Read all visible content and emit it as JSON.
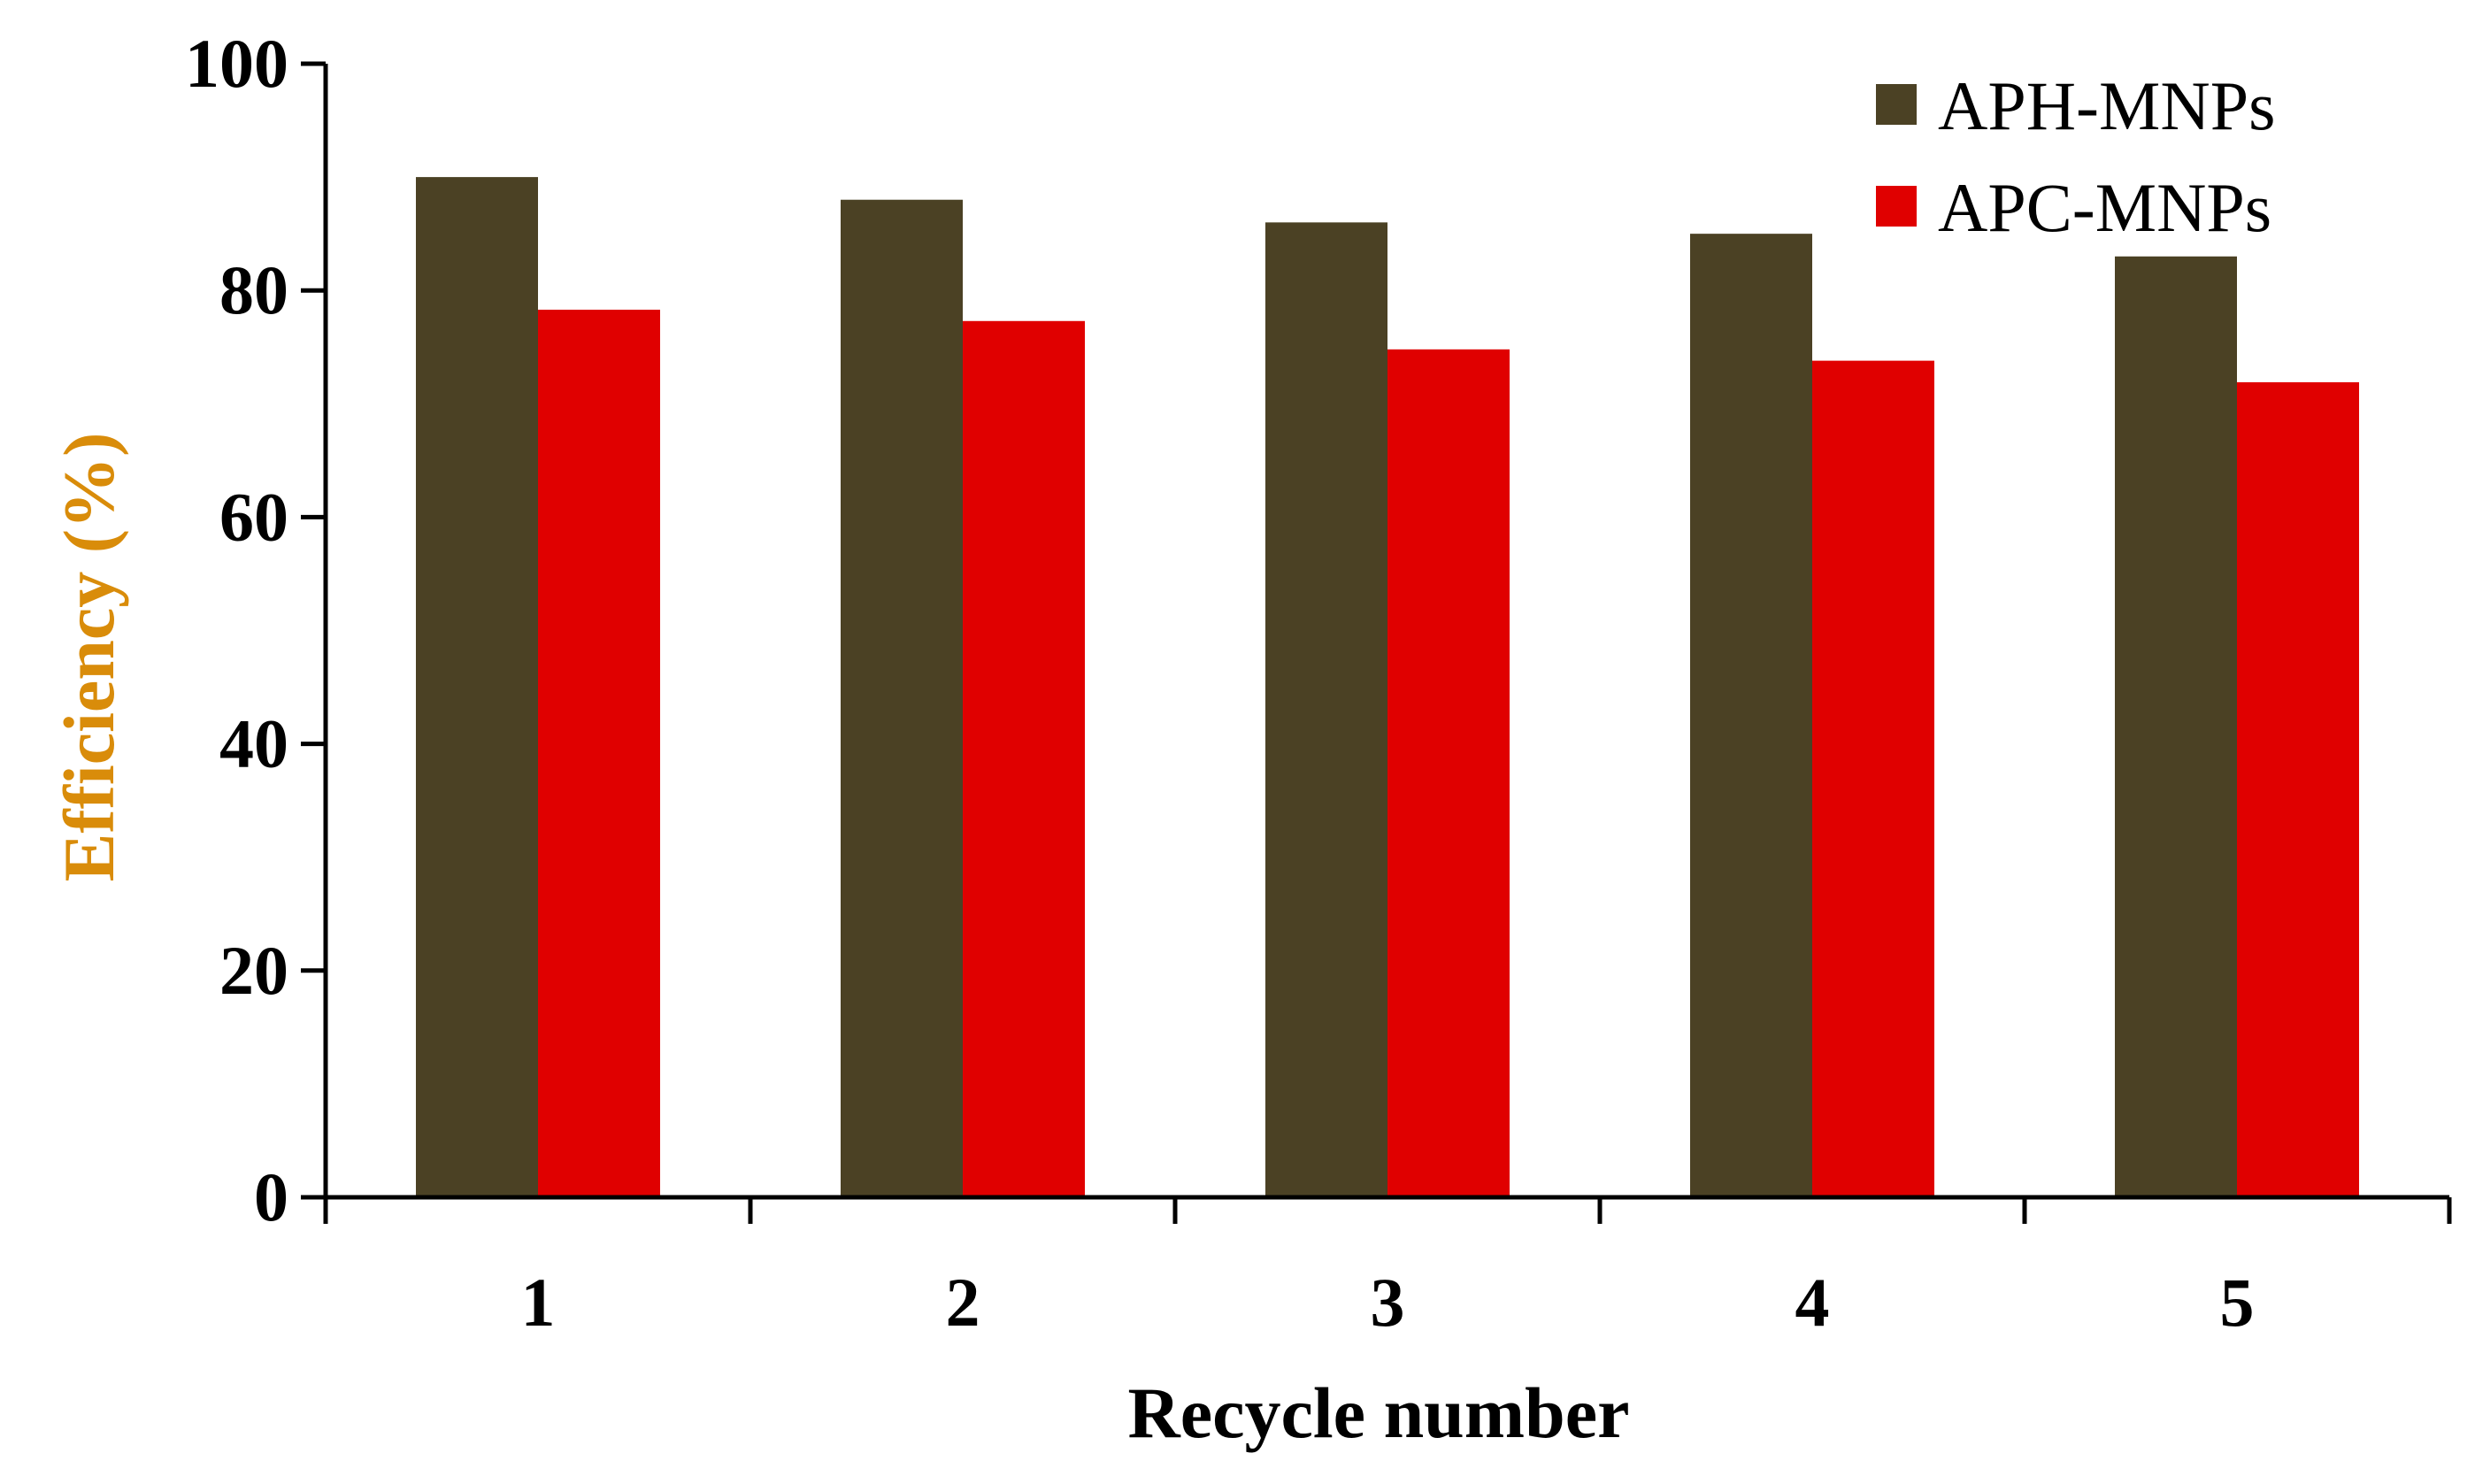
{
  "chart_data": {
    "type": "bar",
    "categories": [
      "1",
      "2",
      "3",
      "4",
      "5"
    ],
    "series": [
      {
        "name": "APH-MNPs",
        "values": [
          90,
          88,
          86,
          85,
          83
        ],
        "color": "#4b4124"
      },
      {
        "name": "APC-MNPs",
        "values": [
          78.3,
          77.3,
          74.8,
          73.8,
          71.9
        ],
        "color": "#e00000"
      }
    ],
    "xlabel": "Recycle number",
    "ylabel": "Efficiency (%)",
    "ylabel_color": "#d98c0a",
    "ylim": [
      0,
      100
    ],
    "yticks": [
      "0",
      "20",
      "40",
      "60",
      "80",
      "100"
    ],
    "grid": false,
    "legend_position": "top-right"
  }
}
